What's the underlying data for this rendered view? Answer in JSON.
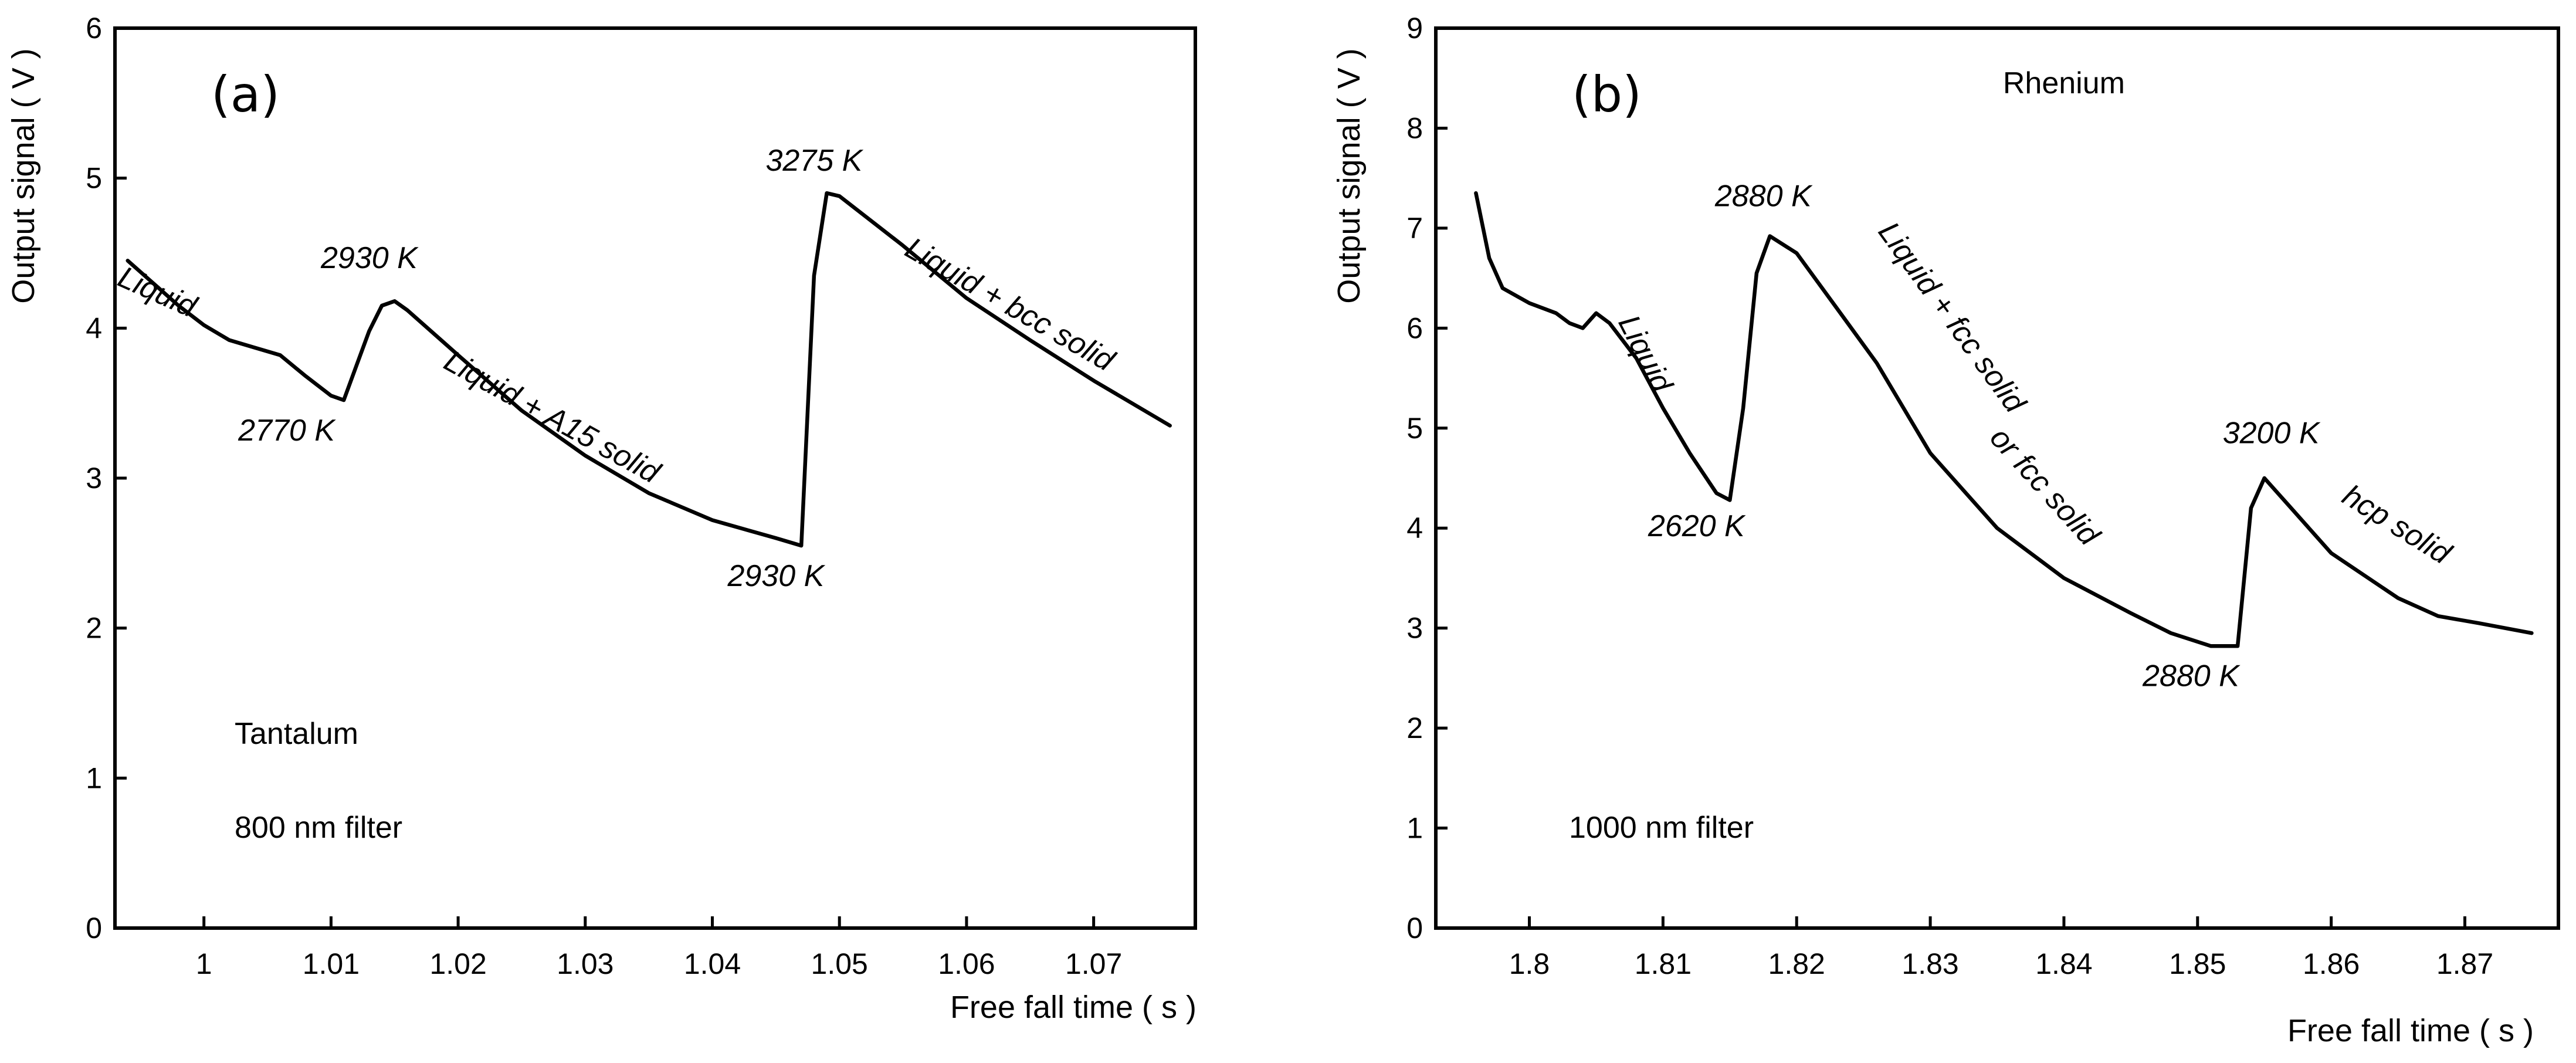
{
  "chart_data": [
    {
      "type": "line",
      "panel_label": "(a)",
      "xlabel": "Free fall time  ( s )",
      "ylabel": "Output signal  ( V )",
      "xlim": [
        0.993,
        1.078
      ],
      "ylim": [
        0,
        6
      ],
      "xticks": [
        1,
        1.01,
        1.02,
        1.03,
        1.04,
        1.05,
        1.06,
        1.07
      ],
      "yticks": [
        0,
        1,
        2,
        3,
        4,
        5,
        6
      ],
      "material": "Tantalum",
      "filter": "800 nm filter",
      "series": [
        {
          "name": "output signal",
          "x": [
            0.994,
            0.996,
            0.998,
            1.0,
            1.002,
            1.004,
            1.006,
            1.008,
            1.01,
            1.011,
            1.012,
            1.013,
            1.014,
            1.015,
            1.016,
            1.02,
            1.025,
            1.03,
            1.035,
            1.04,
            1.045,
            1.047,
            1.048,
            1.049,
            1.05,
            1.055,
            1.06,
            1.065,
            1.07,
            1.076
          ],
          "y": [
            4.45,
            4.3,
            4.15,
            4.02,
            3.92,
            3.87,
            3.82,
            3.68,
            3.55,
            3.52,
            3.75,
            3.98,
            4.15,
            4.18,
            4.12,
            3.82,
            3.45,
            3.15,
            2.9,
            2.72,
            2.6,
            2.55,
            4.35,
            4.9,
            4.88,
            4.55,
            4.2,
            3.92,
            3.65,
            3.35
          ]
        }
      ],
      "annotations": [
        {
          "text": "Liquid",
          "x": 0.996,
          "y": 4.18,
          "rotate": 24
        },
        {
          "text": "2930 K",
          "x": 1.013,
          "y": 4.4,
          "rotate": 0
        },
        {
          "text": "2770 K",
          "x": 1.0065,
          "y": 3.25,
          "rotate": 0
        },
        {
          "text": "Liquid + A15 solid",
          "x": 1.027,
          "y": 3.35,
          "rotate": 29
        },
        {
          "text": "3275 K",
          "x": 1.048,
          "y": 5.05,
          "rotate": 0
        },
        {
          "text": "2930 K",
          "x": 1.045,
          "y": 2.28,
          "rotate": 0
        },
        {
          "text": "Liquid + bcc solid",
          "x": 1.063,
          "y": 4.1,
          "rotate": 30
        }
      ]
    },
    {
      "type": "line",
      "panel_label": "(b)",
      "xlabel": "Free fall time  ( s )",
      "ylabel": "Output signal  ( V )",
      "xlim": [
        1.793,
        1.877
      ],
      "ylim": [
        0,
        9
      ],
      "xticks": [
        1.8,
        1.81,
        1.82,
        1.83,
        1.84,
        1.85,
        1.86,
        1.87
      ],
      "yticks": [
        0,
        1,
        2,
        3,
        4,
        5,
        6,
        7,
        8,
        9
      ],
      "material": "Rhenium",
      "filter": "1000 nm filter",
      "series": [
        {
          "name": "output signal",
          "x": [
            1.796,
            1.797,
            1.798,
            1.8,
            1.802,
            1.803,
            1.804,
            1.805,
            1.806,
            1.808,
            1.81,
            1.812,
            1.814,
            1.815,
            1.816,
            1.817,
            1.818,
            1.82,
            1.823,
            1.826,
            1.83,
            1.835,
            1.84,
            1.845,
            1.848,
            1.851,
            1.853,
            1.854,
            1.855,
            1.857,
            1.86,
            1.865,
            1.868,
            1.871,
            1.875
          ],
          "y": [
            7.35,
            6.7,
            6.4,
            6.25,
            6.15,
            6.05,
            6.0,
            6.15,
            6.05,
            5.7,
            5.2,
            4.75,
            4.35,
            4.28,
            5.2,
            6.55,
            6.92,
            6.75,
            6.2,
            5.65,
            4.75,
            4.0,
            3.5,
            3.15,
            2.95,
            2.82,
            2.82,
            4.2,
            4.5,
            4.2,
            3.75,
            3.3,
            3.12,
            3.05,
            2.95
          ]
        }
      ],
      "annotations": [
        {
          "text": "Rhenium",
          "x": 1.84,
          "y": 8.35,
          "rotate": 0
        },
        {
          "text": "2880 K",
          "x": 1.8175,
          "y": 7.22,
          "rotate": 0
        },
        {
          "text": "Liquid",
          "x": 1.808,
          "y": 5.7,
          "rotate": 63
        },
        {
          "text": "Liquid + fcc solid",
          "x": 1.831,
          "y": 6.05,
          "rotate": 54
        },
        {
          "text": "or fcc solid",
          "x": 1.838,
          "y": 4.35,
          "rotate": 48
        },
        {
          "text": "2620 K",
          "x": 1.8125,
          "y": 3.92,
          "rotate": 0
        },
        {
          "text": "3200 K",
          "x": 1.8555,
          "y": 4.85,
          "rotate": 0
        },
        {
          "text": "hcp solid",
          "x": 1.8645,
          "y": 3.95,
          "rotate": 32
        },
        {
          "text": "2880 K",
          "x": 1.8495,
          "y": 2.42,
          "rotate": 0
        }
      ]
    }
  ]
}
